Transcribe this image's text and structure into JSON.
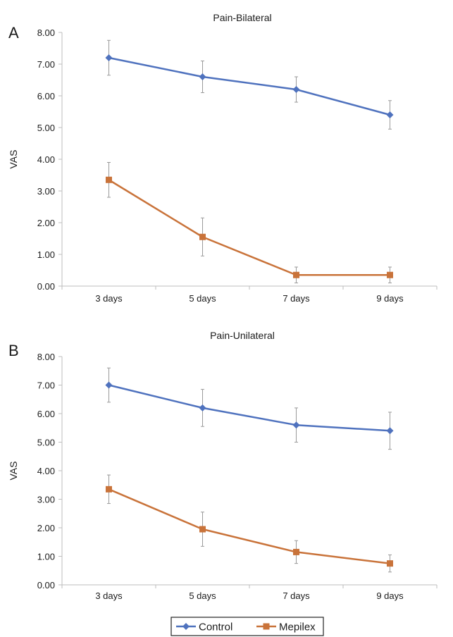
{
  "legend": {
    "entries": [
      {
        "name": "Control",
        "color": "#4f72be"
      },
      {
        "name": "Mepilex",
        "color": "#c9733a"
      }
    ]
  },
  "chart_data": [
    {
      "panel": "A",
      "type": "line",
      "title": "Pain-Bilateral",
      "xlabel": "",
      "ylabel": "VAS",
      "categories": [
        "3 days",
        "5 days",
        "7 days",
        "9 days"
      ],
      "ylim": [
        0,
        8
      ],
      "yticks": [
        "0.00",
        "1.00",
        "2.00",
        "3.00",
        "4.00",
        "5.00",
        "6.00",
        "7.00",
        "8.00"
      ],
      "grid": false,
      "legend": "bottom",
      "series": [
        {
          "name": "Control",
          "color": "#4f72be",
          "marker": "diamond",
          "values": [
            7.2,
            6.6,
            6.2,
            5.4
          ],
          "errors": [
            0.55,
            0.5,
            0.4,
            0.45
          ]
        },
        {
          "name": "Mepilex",
          "color": "#c9733a",
          "marker": "square",
          "values": [
            3.35,
            1.55,
            0.35,
            0.35
          ],
          "errors": [
            0.55,
            0.6,
            0.25,
            0.25
          ]
        }
      ]
    },
    {
      "panel": "B",
      "type": "line",
      "title": "Pain-Unilateral",
      "xlabel": "",
      "ylabel": "VAS",
      "categories": [
        "3 days",
        "5 days",
        "7 days",
        "9 days"
      ],
      "ylim": [
        0,
        8
      ],
      "yticks": [
        "0.00",
        "1.00",
        "2.00",
        "3.00",
        "4.00",
        "5.00",
        "6.00",
        "7.00",
        "8.00"
      ],
      "grid": false,
      "legend": "bottom",
      "series": [
        {
          "name": "Control",
          "color": "#4f72be",
          "marker": "diamond",
          "values": [
            7.0,
            6.2,
            5.6,
            5.4
          ],
          "errors": [
            0.6,
            0.65,
            0.6,
            0.65
          ]
        },
        {
          "name": "Mepilex",
          "color": "#c9733a",
          "marker": "square",
          "values": [
            3.35,
            1.95,
            1.15,
            0.75
          ],
          "errors": [
            0.5,
            0.6,
            0.4,
            0.3
          ]
        }
      ]
    }
  ]
}
